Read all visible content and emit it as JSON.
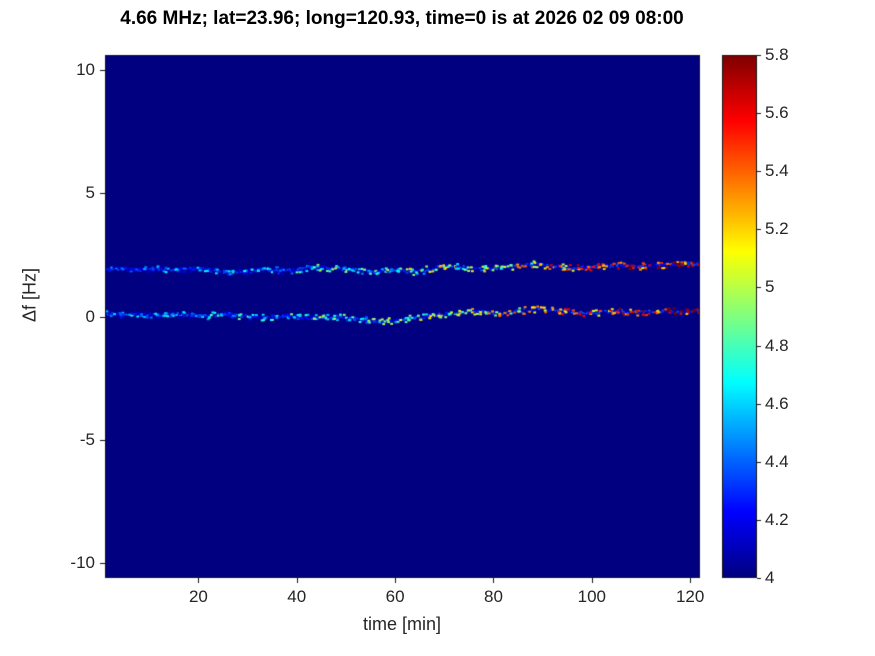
{
  "colors": {
    "background": "#ffffff",
    "axis": "#151515",
    "tick_text": "#262626",
    "title_text": "#000000"
  },
  "chart_data": {
    "type": "heatmap",
    "title": "4.66 MHz;  lat=23.96; long=120.93, time=0 is at 2026 02 09 08:00",
    "xlabel": "time [min]",
    "ylabel": "Δf [Hz]",
    "xlim": [
      1,
      122
    ],
    "ylim": [
      -10.6,
      10.6
    ],
    "x_ticks": [
      20,
      40,
      60,
      80,
      100,
      120
    ],
    "y_ticks": [
      -10,
      -5,
      0,
      5,
      10
    ],
    "grid": false,
    "legend": "none",
    "colormap": "jet",
    "background_value": 4,
    "colorbar": {
      "min": 4,
      "max": 5.8,
      "ticks": [
        4,
        4.2,
        4.4,
        4.6,
        4.8,
        5,
        5.2,
        5.4,
        5.6,
        5.8
      ],
      "position": "right"
    },
    "x": [
      1,
      3,
      5,
      7,
      9,
      11,
      13,
      15,
      17,
      19,
      21,
      23,
      25,
      27,
      29,
      31,
      33,
      35,
      37,
      39,
      41,
      43,
      45,
      47,
      49,
      51,
      53,
      55,
      57,
      59,
      61,
      63,
      65,
      67,
      69,
      71,
      73,
      75,
      77,
      79,
      81,
      83,
      85,
      87,
      89,
      91,
      93,
      95,
      97,
      99,
      101,
      103,
      105,
      107,
      109,
      111,
      113,
      115,
      117,
      119,
      121
    ],
    "series": [
      {
        "name": "upper-doppler-trace",
        "df": [
          1.95,
          1.97,
          1.95,
          1.93,
          1.95,
          1.96,
          1.94,
          1.92,
          1.95,
          1.97,
          1.95,
          1.9,
          1.85,
          1.82,
          1.85,
          1.9,
          1.95,
          1.92,
          1.88,
          1.9,
          1.95,
          2.0,
          2.02,
          1.98,
          1.95,
          1.92,
          1.88,
          1.85,
          1.88,
          1.92,
          1.9,
          1.85,
          1.88,
          1.95,
          2.05,
          2.1,
          2.05,
          1.98,
          1.95,
          1.98,
          2.0,
          2.05,
          2.1,
          2.15,
          2.12,
          2.08,
          2.05,
          2.02,
          2.0,
          2.02,
          2.05,
          2.08,
          2.1,
          2.08,
          2.05,
          2.08,
          2.1,
          2.12,
          2.15,
          2.18,
          2.15
        ],
        "value": [
          4.3,
          4.2,
          4.25,
          4.3,
          4.2,
          4.3,
          4.35,
          4.3,
          4.25,
          4.3,
          4.4,
          4.35,
          4.3,
          4.4,
          4.45,
          4.4,
          4.5,
          4.45,
          4.4,
          4.5,
          4.6,
          4.7,
          4.8,
          4.7,
          4.6,
          4.5,
          4.6,
          4.7,
          4.6,
          4.7,
          4.8,
          4.9,
          4.8,
          4.9,
          5.0,
          4.9,
          4.8,
          4.9,
          5.0,
          5.1,
          5.0,
          5.1,
          5.2,
          5.1,
          5.2,
          5.3,
          5.2,
          5.3,
          5.4,
          5.3,
          5.4,
          5.5,
          5.4,
          5.5,
          5.4,
          5.5,
          5.6,
          5.5,
          5.6,
          5.5,
          5.6
        ]
      },
      {
        "name": "lower-doppler-trace",
        "df": [
          0.15,
          0.12,
          0.1,
          0.12,
          0.1,
          0.08,
          0.1,
          0.12,
          0.1,
          0.08,
          0.05,
          0.08,
          0.1,
          0.08,
          0.05,
          0.02,
          0.0,
          0.02,
          0.05,
          0.02,
          0.0,
          -0.02,
          0.0,
          0.02,
          0.0,
          -0.05,
          -0.1,
          -0.15,
          -0.18,
          -0.15,
          -0.1,
          -0.05,
          0.0,
          0.05,
          0.1,
          0.15,
          0.2,
          0.25,
          0.22,
          0.18,
          0.15,
          0.2,
          0.25,
          0.3,
          0.32,
          0.28,
          0.25,
          0.22,
          0.2,
          0.18,
          0.2,
          0.22,
          0.25,
          0.22,
          0.2,
          0.22,
          0.25,
          0.28,
          0.25,
          0.22,
          0.25
        ],
        "value": [
          4.4,
          4.3,
          4.35,
          4.4,
          4.3,
          4.35,
          4.4,
          4.45,
          4.4,
          4.35,
          4.4,
          4.5,
          4.45,
          4.5,
          4.55,
          4.5,
          4.6,
          4.55,
          4.5,
          4.6,
          4.65,
          4.7,
          4.75,
          4.7,
          4.65,
          4.6,
          4.65,
          4.7,
          4.75,
          4.8,
          4.85,
          4.9,
          4.95,
          5.0,
          5.05,
          5.0,
          4.95,
          5.0,
          5.1,
          5.15,
          5.1,
          5.15,
          5.2,
          5.25,
          5.3,
          5.25,
          5.3,
          5.35,
          5.4,
          5.35,
          5.4,
          5.45,
          5.5,
          5.45,
          5.5,
          5.55,
          5.5,
          5.55,
          5.6,
          5.55,
          5.6
        ]
      }
    ]
  }
}
